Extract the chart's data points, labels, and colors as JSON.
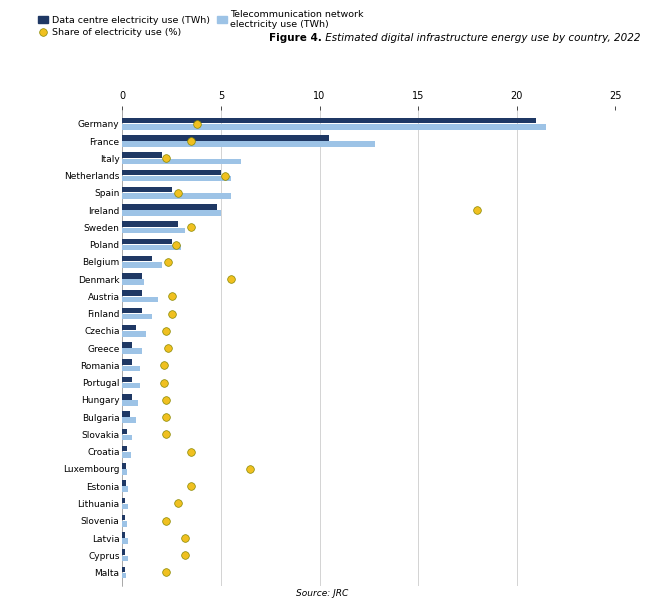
{
  "title_bold": "Figure 4.",
  "title_rest": " Estimated digital infrastructure energy use by country, 2022",
  "source": "Source: JRC",
  "countries": [
    "Germany",
    "France",
    "Italy",
    "Netherlands",
    "Spain",
    "Ireland",
    "Sweden",
    "Poland",
    "Belgium",
    "Denmark",
    "Austria",
    "Finland",
    "Czechia",
    "Greece",
    "Romania",
    "Portugal",
    "Hungary",
    "Bulgaria",
    "Slovakia",
    "Croatia",
    "Luxembourg",
    "Estonia",
    "Lithuania",
    "Slovenia",
    "Latvia",
    "Cyprus",
    "Malta"
  ],
  "data_centre": [
    21.0,
    10.5,
    2.0,
    5.0,
    2.5,
    4.8,
    2.8,
    2.5,
    1.5,
    1.0,
    1.0,
    1.0,
    0.7,
    0.5,
    0.5,
    0.5,
    0.5,
    0.4,
    0.25,
    0.25,
    0.18,
    0.18,
    0.15,
    0.15,
    0.15,
    0.15,
    0.12
  ],
  "telecom": [
    21.5,
    12.8,
    6.0,
    5.5,
    5.5,
    5.0,
    3.2,
    3.0,
    2.0,
    1.1,
    1.8,
    1.5,
    1.2,
    1.0,
    0.9,
    0.9,
    0.8,
    0.7,
    0.5,
    0.45,
    0.25,
    0.3,
    0.3,
    0.25,
    0.3,
    0.3,
    0.2
  ],
  "share": [
    3.8,
    3.5,
    2.2,
    5.2,
    2.8,
    18.0,
    3.5,
    2.7,
    2.3,
    5.5,
    2.5,
    2.5,
    2.2,
    2.3,
    2.1,
    2.1,
    2.2,
    2.2,
    2.2,
    3.5,
    6.5,
    3.5,
    2.8,
    2.2,
    3.2,
    3.2,
    2.2
  ],
  "bar_color_dark": "#1F3864",
  "bar_color_light": "#9DC3E6",
  "dot_color": "#F0C020",
  "dot_edge_color": "#888800",
  "xlim": [
    0,
    25
  ],
  "xticks": [
    0,
    5,
    10,
    15,
    20,
    25
  ],
  "bar_height": 0.32,
  "bar_gap": 0.04,
  "title_fontsize": 7.5,
  "axis_fontsize": 6.5,
  "legend_fontsize": 6.8,
  "tick_fontsize": 7,
  "background_color": "#FFFFFF",
  "grid_color": "#CCCCCC",
  "dot_size": 5.5
}
